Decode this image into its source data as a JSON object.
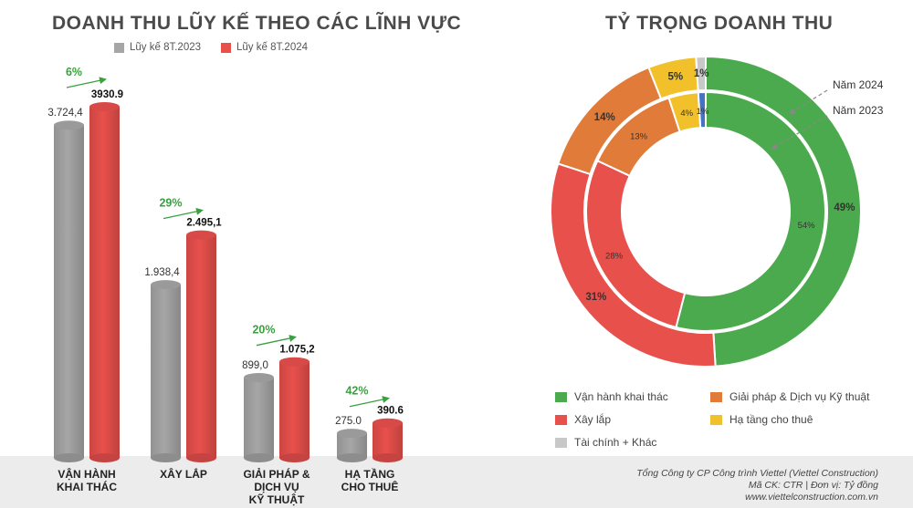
{
  "left_title": "DOANH THU LŨY KẾ THEO CÁC LĨNH VỰC",
  "right_title": "TỶ TRỌNG DOANH THU",
  "colors": {
    "gray": "#a6a6a6",
    "red": "#e8504c",
    "green": "#4caa4e",
    "orange": "#e07b39",
    "yellow": "#f2c02b",
    "silver": "#c8c8c8",
    "blue": "#4472c4",
    "pct_green": "#3aa040"
  },
  "chart_data": [
    {
      "type": "bar",
      "title": "DOANH THU LŨY KẾ THEO CÁC LĨNH VỰC",
      "categories": [
        "VẬN HÀNH KHAI THÁC",
        "XÂY LẮP",
        "GIẢI PHÁP & DỊCH VỤ KỸ THUẬT",
        "HẠ TẦNG CHO THUÊ"
      ],
      "category_lines": [
        [
          "VẬN HÀNH",
          "KHAI THÁC"
        ],
        [
          "XÂY LẮP"
        ],
        [
          "GIẢI PHÁP &",
          "DỊCH VỤ",
          "KỸ THUẬT"
        ],
        [
          "HẠ TẦNG",
          "CHO THUÊ"
        ]
      ],
      "series": [
        {
          "name": "Lũy kế 8T.2023",
          "values": [
            3724.4,
            1938.4,
            899.0,
            275.0
          ],
          "labels": [
            "3.724,4",
            "1.938,4",
            "899,0",
            "275.0"
          ]
        },
        {
          "name": "Lũy kế 8T.2024",
          "values": [
            3930.9,
            2495.1,
            1075.2,
            390.6
          ],
          "labels": [
            "3930.9",
            "2.495,1",
            "1.075,2",
            "390.6"
          ]
        }
      ],
      "growth": [
        "6%",
        "29%",
        "20%",
        "42%"
      ],
      "legend": "top",
      "grid": false
    },
    {
      "type": "pie",
      "title": "TỶ TRỌNG DOANH THU",
      "categories": [
        "Vận hành khai thác",
        "Xây lắp",
        "Giải pháp & Dịch vụ Kỹ thuật",
        "Hạ tầng cho thuê",
        "Tài chính + Khác"
      ],
      "series": [
        {
          "name": "Năm 2024",
          "values": [
            49,
            31,
            14,
            5,
            1
          ],
          "labels": [
            "49%",
            "31%",
            "14%",
            "5%",
            "1%"
          ]
        },
        {
          "name": "Năm 2023",
          "values": [
            54,
            28,
            13,
            4,
            1
          ],
          "labels": [
            "54%",
            "28%",
            "13%",
            "4%",
            "1%"
          ]
        }
      ],
      "legend": "bottom"
    }
  ],
  "footer": {
    "company": "Tổng Công ty CP Công trình Viettel (Viettel Construction)",
    "ticker": "Mã CK: CTR  |  Đơn vị: Tỷ đồng",
    "website": "www.viettelconstruction.com.vn"
  }
}
